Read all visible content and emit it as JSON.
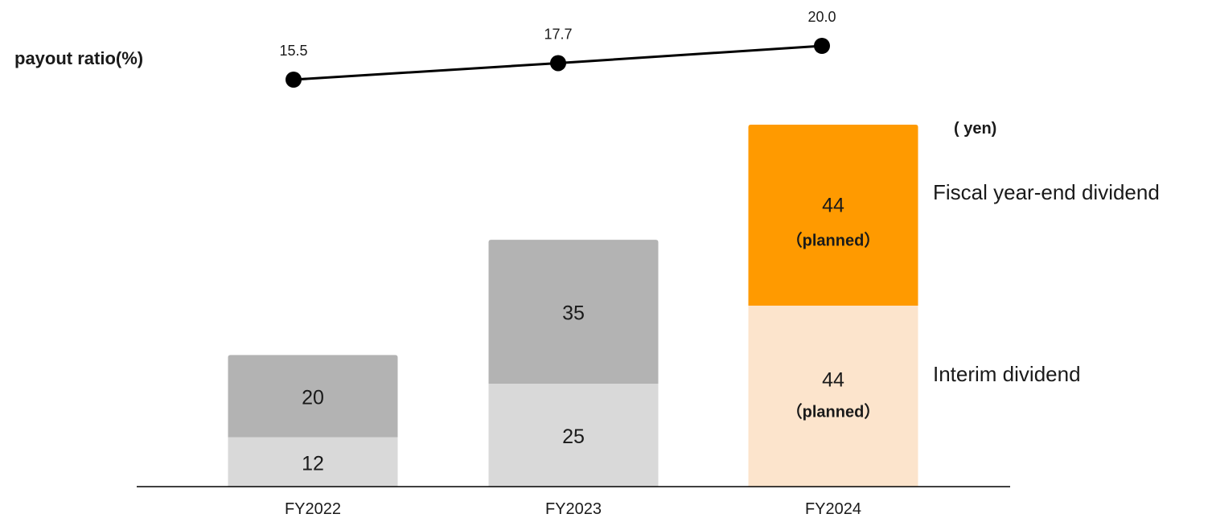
{
  "chart_data": {
    "type": "bar",
    "stacked": true,
    "categories": [
      "FY2022",
      "FY2023",
      "FY2024"
    ],
    "unit_label": "( yen)",
    "series": [
      {
        "name": "Interim dividend",
        "values": [
          12,
          25,
          44
        ],
        "value_labels": [
          "12",
          "25",
          "44"
        ],
        "notes": [
          "",
          "",
          "（planned）"
        ],
        "colors": [
          "#d9d9d9",
          "#d9d9d9",
          "#fce4cc"
        ]
      },
      {
        "name": "Fiscal year-end dividend",
        "values": [
          20,
          35,
          44
        ],
        "value_labels": [
          "20",
          "35",
          "44"
        ],
        "notes": [
          "",
          "",
          "（planned）"
        ],
        "colors": [
          "#b3b3b3",
          "#b3b3b3",
          "#ff9a00"
        ]
      }
    ],
    "line": {
      "name": "payout ratio(%)",
      "values": [
        15.5,
        17.7,
        20.0
      ],
      "value_labels": [
        "15.5",
        "17.7",
        "20.0"
      ],
      "color": "#000000"
    },
    "ylim": [
      0,
      88
    ],
    "grid": false,
    "legend": "right"
  }
}
